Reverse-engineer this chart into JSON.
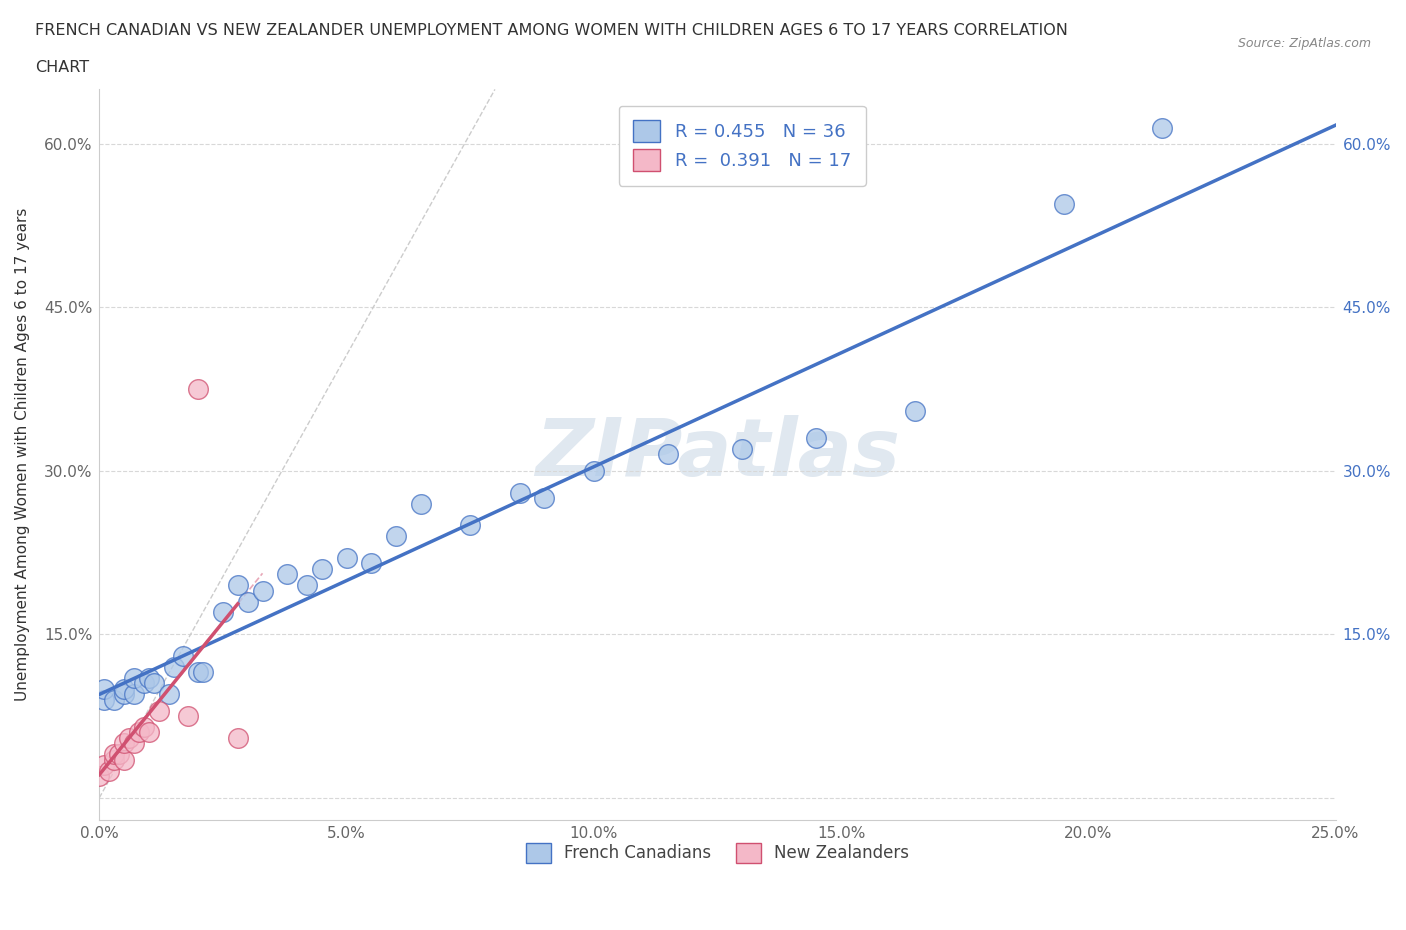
{
  "title_line1": "FRENCH CANADIAN VS NEW ZEALANDER UNEMPLOYMENT AMONG WOMEN WITH CHILDREN AGES 6 TO 17 YEARS CORRELATION",
  "title_line2": "CHART",
  "source": "Source: ZipAtlas.com",
  "ylabel": "Unemployment Among Women with Children Ages 6 to 17 years",
  "xlabel": "",
  "xlim": [
    0.0,
    0.25
  ],
  "ylim": [
    -0.02,
    0.65
  ],
  "xticks": [
    0.0,
    0.05,
    0.1,
    0.15,
    0.2,
    0.25
  ],
  "yticks": [
    0.0,
    0.15,
    0.3,
    0.45,
    0.6
  ],
  "xticklabels": [
    "0.0%",
    "5.0%",
    "10.0%",
    "15.0%",
    "20.0%",
    "25.0%"
  ],
  "yticklabels": [
    "",
    "15.0%",
    "30.0%",
    "45.0%",
    "60.0%"
  ],
  "blue_R": 0.455,
  "blue_N": 36,
  "pink_R": 0.391,
  "pink_N": 17,
  "blue_color": "#adc8e8",
  "blue_line_color": "#4472c4",
  "pink_color": "#f4b8c8",
  "pink_line_color": "#d05070",
  "french_canadian_x": [
    0.001,
    0.001,
    0.003,
    0.005,
    0.005,
    0.007,
    0.007,
    0.009,
    0.01,
    0.011,
    0.014,
    0.015,
    0.017,
    0.02,
    0.021,
    0.025,
    0.028,
    0.03,
    0.033,
    0.038,
    0.042,
    0.045,
    0.05,
    0.055,
    0.06,
    0.065,
    0.075,
    0.085,
    0.09,
    0.1,
    0.115,
    0.13,
    0.145,
    0.165,
    0.195,
    0.215
  ],
  "french_canadian_y": [
    0.09,
    0.1,
    0.09,
    0.095,
    0.1,
    0.095,
    0.11,
    0.105,
    0.11,
    0.105,
    0.095,
    0.12,
    0.13,
    0.115,
    0.115,
    0.17,
    0.195,
    0.18,
    0.19,
    0.205,
    0.195,
    0.21,
    0.22,
    0.215,
    0.24,
    0.27,
    0.25,
    0.28,
    0.275,
    0.3,
    0.315,
    0.32,
    0.33,
    0.355,
    0.545,
    0.615
  ],
  "new_zealander_x": [
    0.0,
    0.001,
    0.002,
    0.003,
    0.003,
    0.004,
    0.005,
    0.005,
    0.006,
    0.007,
    0.008,
    0.009,
    0.01,
    0.012,
    0.018,
    0.02,
    0.028
  ],
  "new_zealander_y": [
    0.02,
    0.03,
    0.025,
    0.035,
    0.04,
    0.04,
    0.035,
    0.05,
    0.055,
    0.05,
    0.06,
    0.065,
    0.06,
    0.08,
    0.075,
    0.375,
    0.055
  ],
  "background_color": "#ffffff",
  "grid_color": "#d8d8d8",
  "watermark_color": "#e0e8f0"
}
